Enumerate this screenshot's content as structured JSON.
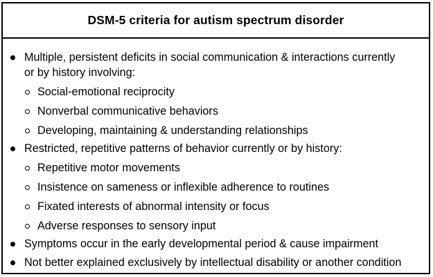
{
  "title": "DSM-5 criteria for autism spectrum disorder",
  "criteria": [
    {
      "lines": [
        "Multiple, persistent deficits in social communication & interactions currently",
        "or by history involving:"
      ],
      "sub": [
        "Social-emotional reciprocity",
        "Nonverbal communicative behaviors",
        "Developing, maintaining & understanding relationships"
      ]
    },
    {
      "lines": [
        "Restricted, repetitive patterns of behavior currently or by history:"
      ],
      "sub": [
        "Repetitive motor movements",
        "Insistence on sameness or inflexible adherence to routines",
        "Fixated interests of abnormal intensity or focus",
        "Adverse responses to sensory input"
      ]
    },
    {
      "lines": [
        "Symptoms occur in the early developmental period & cause impairment"
      ],
      "sub": []
    },
    {
      "lines": [
        "Not better explained exclusively by intellectual disability or another condition"
      ],
      "sub": []
    }
  ]
}
